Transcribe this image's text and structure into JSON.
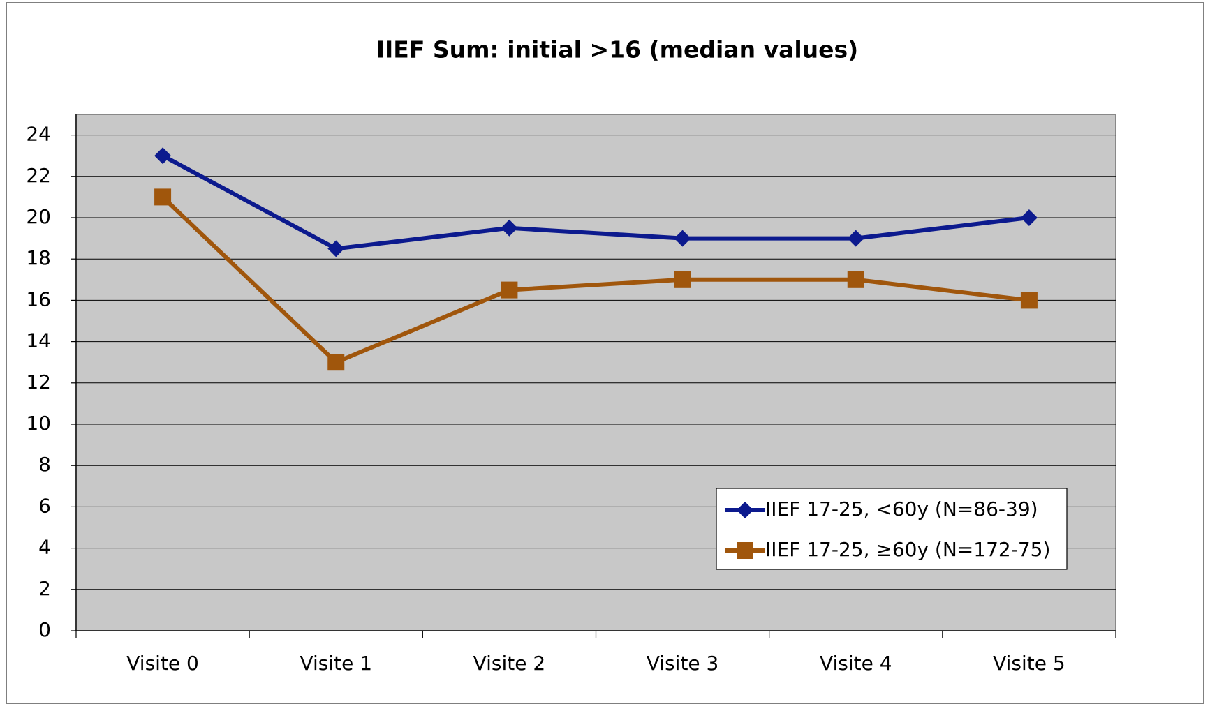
{
  "chart_data": {
    "type": "line",
    "title": "IIEF Sum:  initial >16 (median values)",
    "categories": [
      "Visite 0",
      "Visite 1",
      "Visite 2",
      "Visite 3",
      "Visite 4",
      "Visite 5"
    ],
    "series": [
      {
        "name": "IIEF 17-25, <60y (N=86-39)",
        "color": "#0c1a8e",
        "marker": "diamond",
        "values": [
          23,
          18.5,
          19.5,
          19,
          19,
          20
        ]
      },
      {
        "name": "IIEF 17-25, ≥60y (N=172-75)",
        "color": "#a0560c",
        "marker": "square",
        "values": [
          21,
          13,
          16.5,
          17,
          17,
          16
        ]
      }
    ],
    "ylim": [
      0,
      25
    ],
    "yticks": [
      0,
      2,
      4,
      6,
      8,
      10,
      12,
      14,
      16,
      18,
      20,
      22,
      24
    ],
    "grid": true,
    "legend": "lower right"
  }
}
